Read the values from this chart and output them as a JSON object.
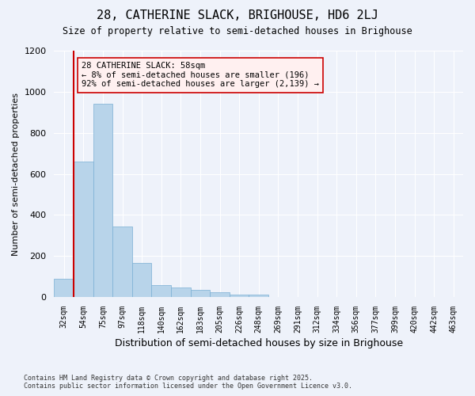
{
  "title": "28, CATHERINE SLACK, BRIGHOUSE, HD6 2LJ",
  "subtitle": "Size of property relative to semi-detached houses in Brighouse",
  "xlabel": "Distribution of semi-detached houses by size in Brighouse",
  "ylabel": "Number of semi-detached properties",
  "property_label": "28 CATHERINE SLACK: 58sqm",
  "pct_smaller": "8% of semi-detached houses are smaller (196)",
  "pct_larger": "92% of semi-detached houses are larger (2,139)",
  "bin_labels": [
    "32sqm",
    "54sqm",
    "75sqm",
    "97sqm",
    "118sqm",
    "140sqm",
    "162sqm",
    "183sqm",
    "205sqm",
    "226sqm",
    "248sqm",
    "269sqm",
    "291sqm",
    "312sqm",
    "334sqm",
    "356sqm",
    "377sqm",
    "399sqm",
    "420sqm",
    "442sqm",
    "463sqm"
  ],
  "counts": [
    90,
    660,
    940,
    345,
    165,
    60,
    45,
    35,
    25,
    10,
    10,
    0,
    0,
    0,
    0,
    0,
    0,
    0,
    0,
    0,
    0
  ],
  "bar_color": "#b8d4ea",
  "bar_edge_color": "#7aafd4",
  "vline_color": "#cc0000",
  "background_color": "#eef2fa",
  "grid_color": "#ffffff",
  "footer_line1": "Contains HM Land Registry data © Crown copyright and database right 2025.",
  "footer_line2": "Contains public sector information licensed under the Open Government Licence v3.0.",
  "ylim": [
    0,
    1200
  ],
  "yticks": [
    0,
    200,
    400,
    600,
    800,
    1000,
    1200
  ],
  "vline_x": 0.5
}
